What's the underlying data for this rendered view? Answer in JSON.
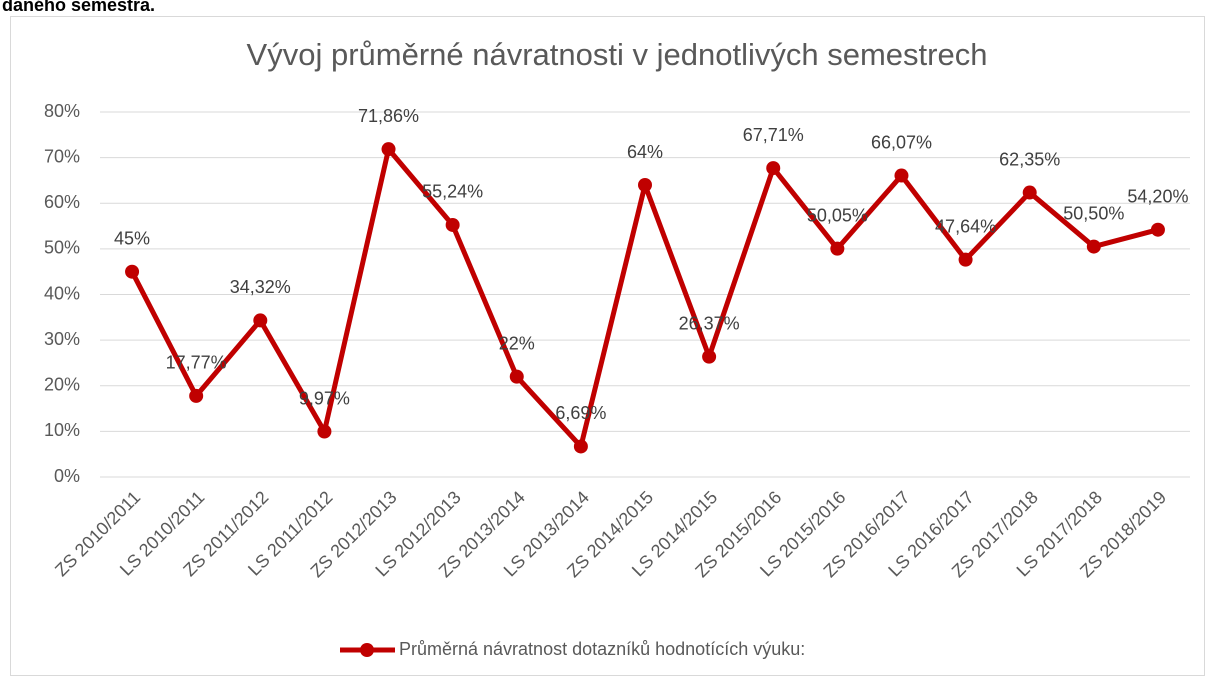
{
  "header_text": "daného semestra.",
  "chart_data": {
    "type": "line",
    "title": "Vývoj průměrné návratnosti v jednotlivých semestrech",
    "categories": [
      "ZS 2010/2011",
      "LS 2010/2011",
      "ZS 2011/2012",
      "LS 2011/2012",
      "ZS 2012/2013",
      "LS 2012/2013",
      "ZS 2013/2014",
      "LS 2013/2014",
      "ZS 2014/2015",
      "LS 2014/2015",
      "ZS 2015/2016",
      "LS 2015/2016",
      "ZS 2016/2017",
      "LS 2016/2017",
      "ZS 2017/2018",
      "LS 2017/2018",
      "ZS 2018/2019"
    ],
    "series": [
      {
        "name": "Průměrná návratnost dotazníků hodnotících výuku:",
        "color": "#c00000",
        "values": [
          45,
          17.77,
          34.32,
          9.97,
          71.86,
          55.24,
          22,
          6.69,
          64,
          26.37,
          67.71,
          50.05,
          66.07,
          47.64,
          62.35,
          50.5,
          54.2
        ],
        "value_labels": [
          "45%",
          "17,77%",
          "34,32%",
          "9,97%",
          "71,86%",
          "55,24%",
          "22%",
          "6,69%",
          "64%",
          "26,37%",
          "67,71%",
          "50,05%",
          "66,07%",
          "47,64%",
          "62,35%",
          "50,50%",
          "54,20%"
        ]
      }
    ],
    "ylim": [
      0,
      80
    ],
    "yticks": [
      {
        "value": 0,
        "label": "0%"
      },
      {
        "value": 10,
        "label": "10%"
      },
      {
        "value": 20,
        "label": "20%"
      },
      {
        "value": 30,
        "label": "30%"
      },
      {
        "value": 40,
        "label": "40%"
      },
      {
        "value": 50,
        "label": "50%"
      },
      {
        "value": 60,
        "label": "60%"
      },
      {
        "value": 70,
        "label": "70%"
      },
      {
        "value": 80,
        "label": "80%"
      }
    ],
    "grid": true,
    "legend": "bottom"
  }
}
